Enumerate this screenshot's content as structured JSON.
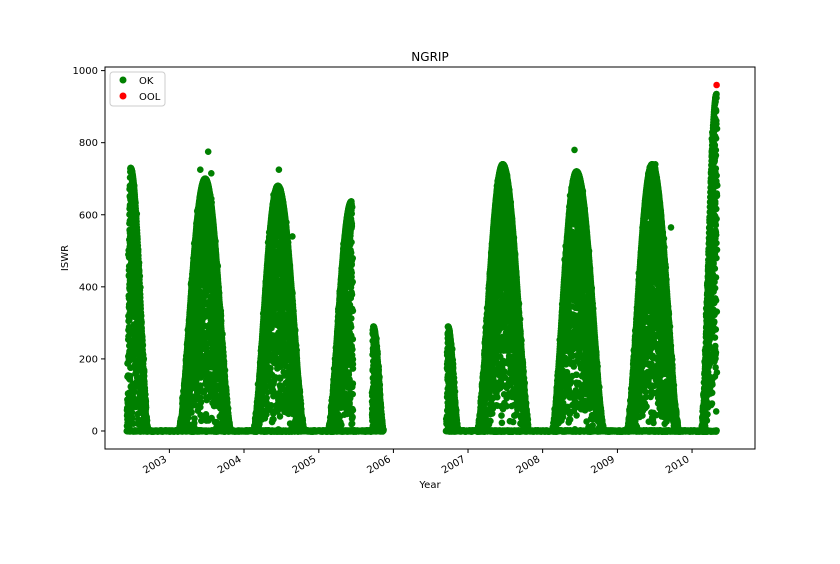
{
  "chart_data": {
    "type": "scatter",
    "title": "NGRIP",
    "xlabel": "Year",
    "ylabel": "ISWR",
    "xlim": [
      "2002-02-20",
      "2010-11-05"
    ],
    "ylim": [
      -50,
      1010
    ],
    "yticks": [
      0,
      200,
      400,
      600,
      800,
      1000
    ],
    "xticks": [
      {
        "label": "2003",
        "date": "2003-01-01"
      },
      {
        "label": "2004",
        "date": "2004-01-01"
      },
      {
        "label": "2005",
        "date": "2005-01-01"
      },
      {
        "label": "2006",
        "date": "2006-01-01"
      },
      {
        "label": "2007",
        "date": "2007-01-01"
      },
      {
        "label": "2008",
        "date": "2008-01-01"
      },
      {
        "label": "2009",
        "date": "2009-01-01"
      },
      {
        "label": "2010",
        "date": "2010-01-01"
      }
    ],
    "grid": false,
    "legend_position": "top-left",
    "series": [
      {
        "name": "OK",
        "color": "#008000",
        "seasons": [
          {
            "start": "2002-06-10",
            "end": "2002-09-15",
            "peak_date": "2002-06-25",
            "peak": 730
          },
          {
            "start": "2003-02-20",
            "end": "2003-10-25",
            "peak_date": "2003-06-25",
            "peak": 700
          },
          {
            "start": "2004-02-20",
            "end": "2004-10-20",
            "peak_date": "2004-06-15",
            "peak": 680
          },
          {
            "start": "2005-02-20",
            "end": "2005-06-15",
            "peak_date": "2005-06-10",
            "peak": 637
          },
          {
            "start": "2005-09-20",
            "end": "2005-11-10",
            "peak_date": "2005-09-25",
            "peak": 290
          },
          {
            "start": "2006-09-20",
            "end": "2006-11-10",
            "peak_date": "2006-09-25",
            "peak": 290
          },
          {
            "start": "2007-02-20",
            "end": "2007-10-25",
            "peak_date": "2007-06-20",
            "peak": 740
          },
          {
            "start": "2008-02-20",
            "end": "2008-10-25",
            "peak_date": "2008-06-15",
            "peak": 720
          },
          {
            "start": "2009-02-20",
            "end": "2009-10-25",
            "peak_date": "2009-06-20",
            "peak": 740
          },
          {
            "start": "2010-02-20",
            "end": "2010-05-01",
            "peak_date": "2010-05-01",
            "peak": 935
          }
        ],
        "outliers": [
          {
            "date": "2003-06-01",
            "value": 725
          },
          {
            "date": "2003-07-10",
            "value": 775
          },
          {
            "date": "2003-07-25",
            "value": 715
          },
          {
            "date": "2004-06-20",
            "value": 725
          },
          {
            "date": "2004-08-25",
            "value": 540
          },
          {
            "date": "2008-06-05",
            "value": 780
          },
          {
            "date": "2009-07-05",
            "value": 740
          },
          {
            "date": "2009-09-20",
            "value": 565
          }
        ]
      },
      {
        "name": "OOL",
        "color": "#ff0000",
        "points": [
          {
            "date": "2010-05-01",
            "value": 960
          }
        ]
      }
    ]
  }
}
